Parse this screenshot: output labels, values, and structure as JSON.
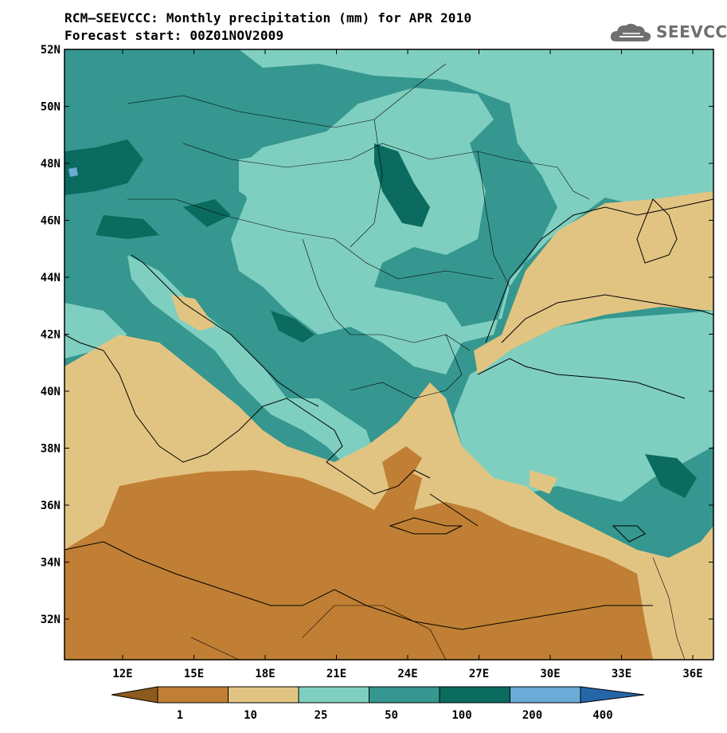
{
  "title": {
    "line1": "RCM–SEEVCCC: Monthly precipitation (mm) for APR 2010",
    "line2": "Forecast start: 00Z01NOV2009"
  },
  "logo": {
    "text": "SEEVCCC",
    "icon": "cloud-icon"
  },
  "map": {
    "lat_range": [
      30.5,
      52
    ],
    "lon_range": [
      9.5,
      37.5
    ],
    "lat_labels": [
      "52N",
      "50N",
      "48N",
      "46N",
      "44N",
      "42N",
      "40N",
      "38N",
      "36N",
      "34N",
      "32N"
    ],
    "lon_labels": [
      "12E",
      "15E",
      "18E",
      "21E",
      "24E",
      "27E",
      "30E",
      "33E",
      "36E"
    ]
  },
  "legend": {
    "levels": [
      "1",
      "10",
      "25",
      "50",
      "100",
      "200",
      "400"
    ],
    "colors": [
      "#8c5a1c",
      "#c07f34",
      "#e2c482",
      "#7fcfc0",
      "#35978f",
      "#0a6b5e",
      "#6aabd8",
      "#2566a8"
    ],
    "units": "mm"
  }
}
